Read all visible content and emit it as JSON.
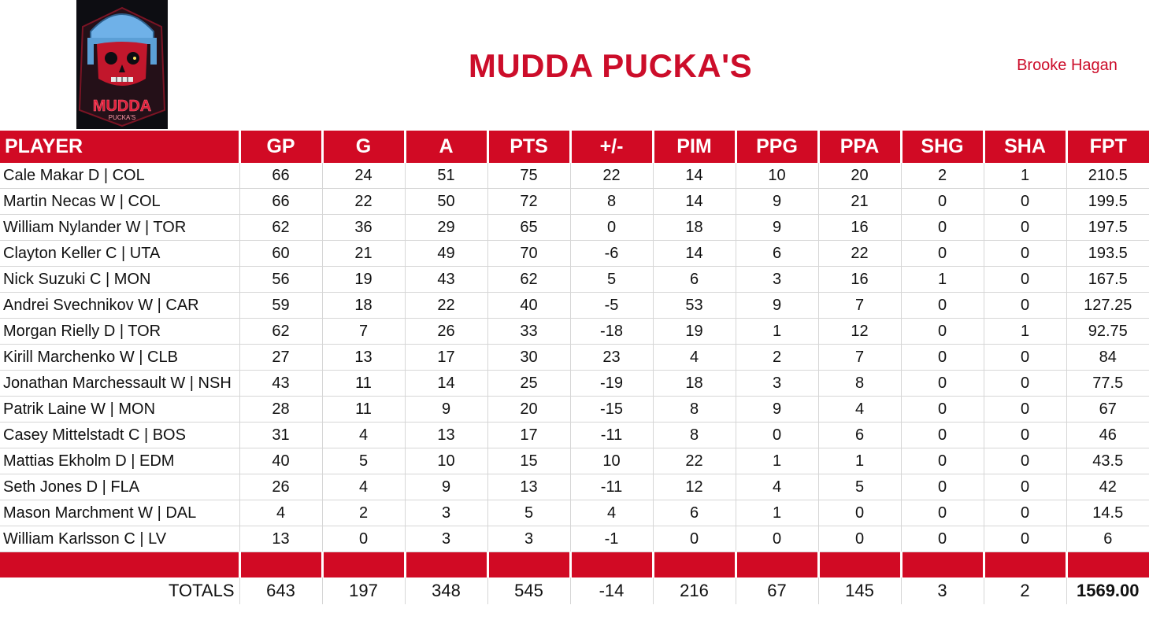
{
  "header": {
    "team_name": "MUDDA PUCKA'S",
    "owner": "Brooke Hagan",
    "logo_text": "MUDDA",
    "logo_subtext": "PUCKA'S"
  },
  "colors": {
    "accent": "#d10a24",
    "title": "#cc0d2a",
    "logo_helmet": "#6fb1e8",
    "logo_skull": "#c2172c"
  },
  "table": {
    "columns": [
      "PLAYER",
      "GP",
      "G",
      "A",
      "PTS",
      "+/-",
      "PIM",
      "PPG",
      "PPA",
      "SHG",
      "SHA",
      "FPT"
    ],
    "rows": [
      [
        "Cale Makar D | COL",
        "66",
        "24",
        "51",
        "75",
        "22",
        "14",
        "10",
        "20",
        "2",
        "1",
        "210.5"
      ],
      [
        "Martin Necas W | COL",
        "66",
        "22",
        "50",
        "72",
        "8",
        "14",
        "9",
        "21",
        "0",
        "0",
        "199.5"
      ],
      [
        "William Nylander W | TOR",
        "62",
        "36",
        "29",
        "65",
        "0",
        "18",
        "9",
        "16",
        "0",
        "0",
        "197.5"
      ],
      [
        "Clayton Keller C | UTA",
        "60",
        "21",
        "49",
        "70",
        "-6",
        "14",
        "6",
        "22",
        "0",
        "0",
        "193.5"
      ],
      [
        "Nick Suzuki C | MON",
        "56",
        "19",
        "43",
        "62",
        "5",
        "6",
        "3",
        "16",
        "1",
        "0",
        "167.5"
      ],
      [
        "Andrei Svechnikov W | CAR",
        "59",
        "18",
        "22",
        "40",
        "-5",
        "53",
        "9",
        "7",
        "0",
        "0",
        "127.25"
      ],
      [
        "Morgan Rielly D | TOR",
        "62",
        "7",
        "26",
        "33",
        "-18",
        "19",
        "1",
        "12",
        "0",
        "1",
        "92.75"
      ],
      [
        "Kirill Marchenko W | CLB",
        "27",
        "13",
        "17",
        "30",
        "23",
        "4",
        "2",
        "7",
        "0",
        "0",
        "84"
      ],
      [
        "Jonathan Marchessault W | NSH",
        "43",
        "11",
        "14",
        "25",
        "-19",
        "18",
        "3",
        "8",
        "0",
        "0",
        "77.5"
      ],
      [
        "Patrik Laine W | MON",
        "28",
        "11",
        "9",
        "20",
        "-15",
        "8",
        "9",
        "4",
        "0",
        "0",
        "67"
      ],
      [
        "Casey Mittelstadt C | BOS",
        "31",
        "4",
        "13",
        "17",
        "-11",
        "8",
        "0",
        "6",
        "0",
        "0",
        "46"
      ],
      [
        "Mattias Ekholm D | EDM",
        "40",
        "5",
        "10",
        "15",
        "10",
        "22",
        "1",
        "1",
        "0",
        "0",
        "43.5"
      ],
      [
        "Seth Jones D | FLA",
        "26",
        "4",
        "9",
        "13",
        "-11",
        "12",
        "4",
        "5",
        "0",
        "0",
        "42"
      ],
      [
        "Mason Marchment W | DAL",
        "4",
        "2",
        "3",
        "5",
        "4",
        "6",
        "1",
        "0",
        "0",
        "0",
        "14.5"
      ],
      [
        "William Karlsson C | LV",
        "13",
        "0",
        "3",
        "3",
        "-1",
        "0",
        "0",
        "0",
        "0",
        "0",
        "6"
      ]
    ],
    "totals_label": "TOTALS",
    "totals": [
      "643",
      "197",
      "348",
      "545",
      "-14",
      "216",
      "67",
      "145",
      "3",
      "2",
      "1569.00"
    ]
  }
}
